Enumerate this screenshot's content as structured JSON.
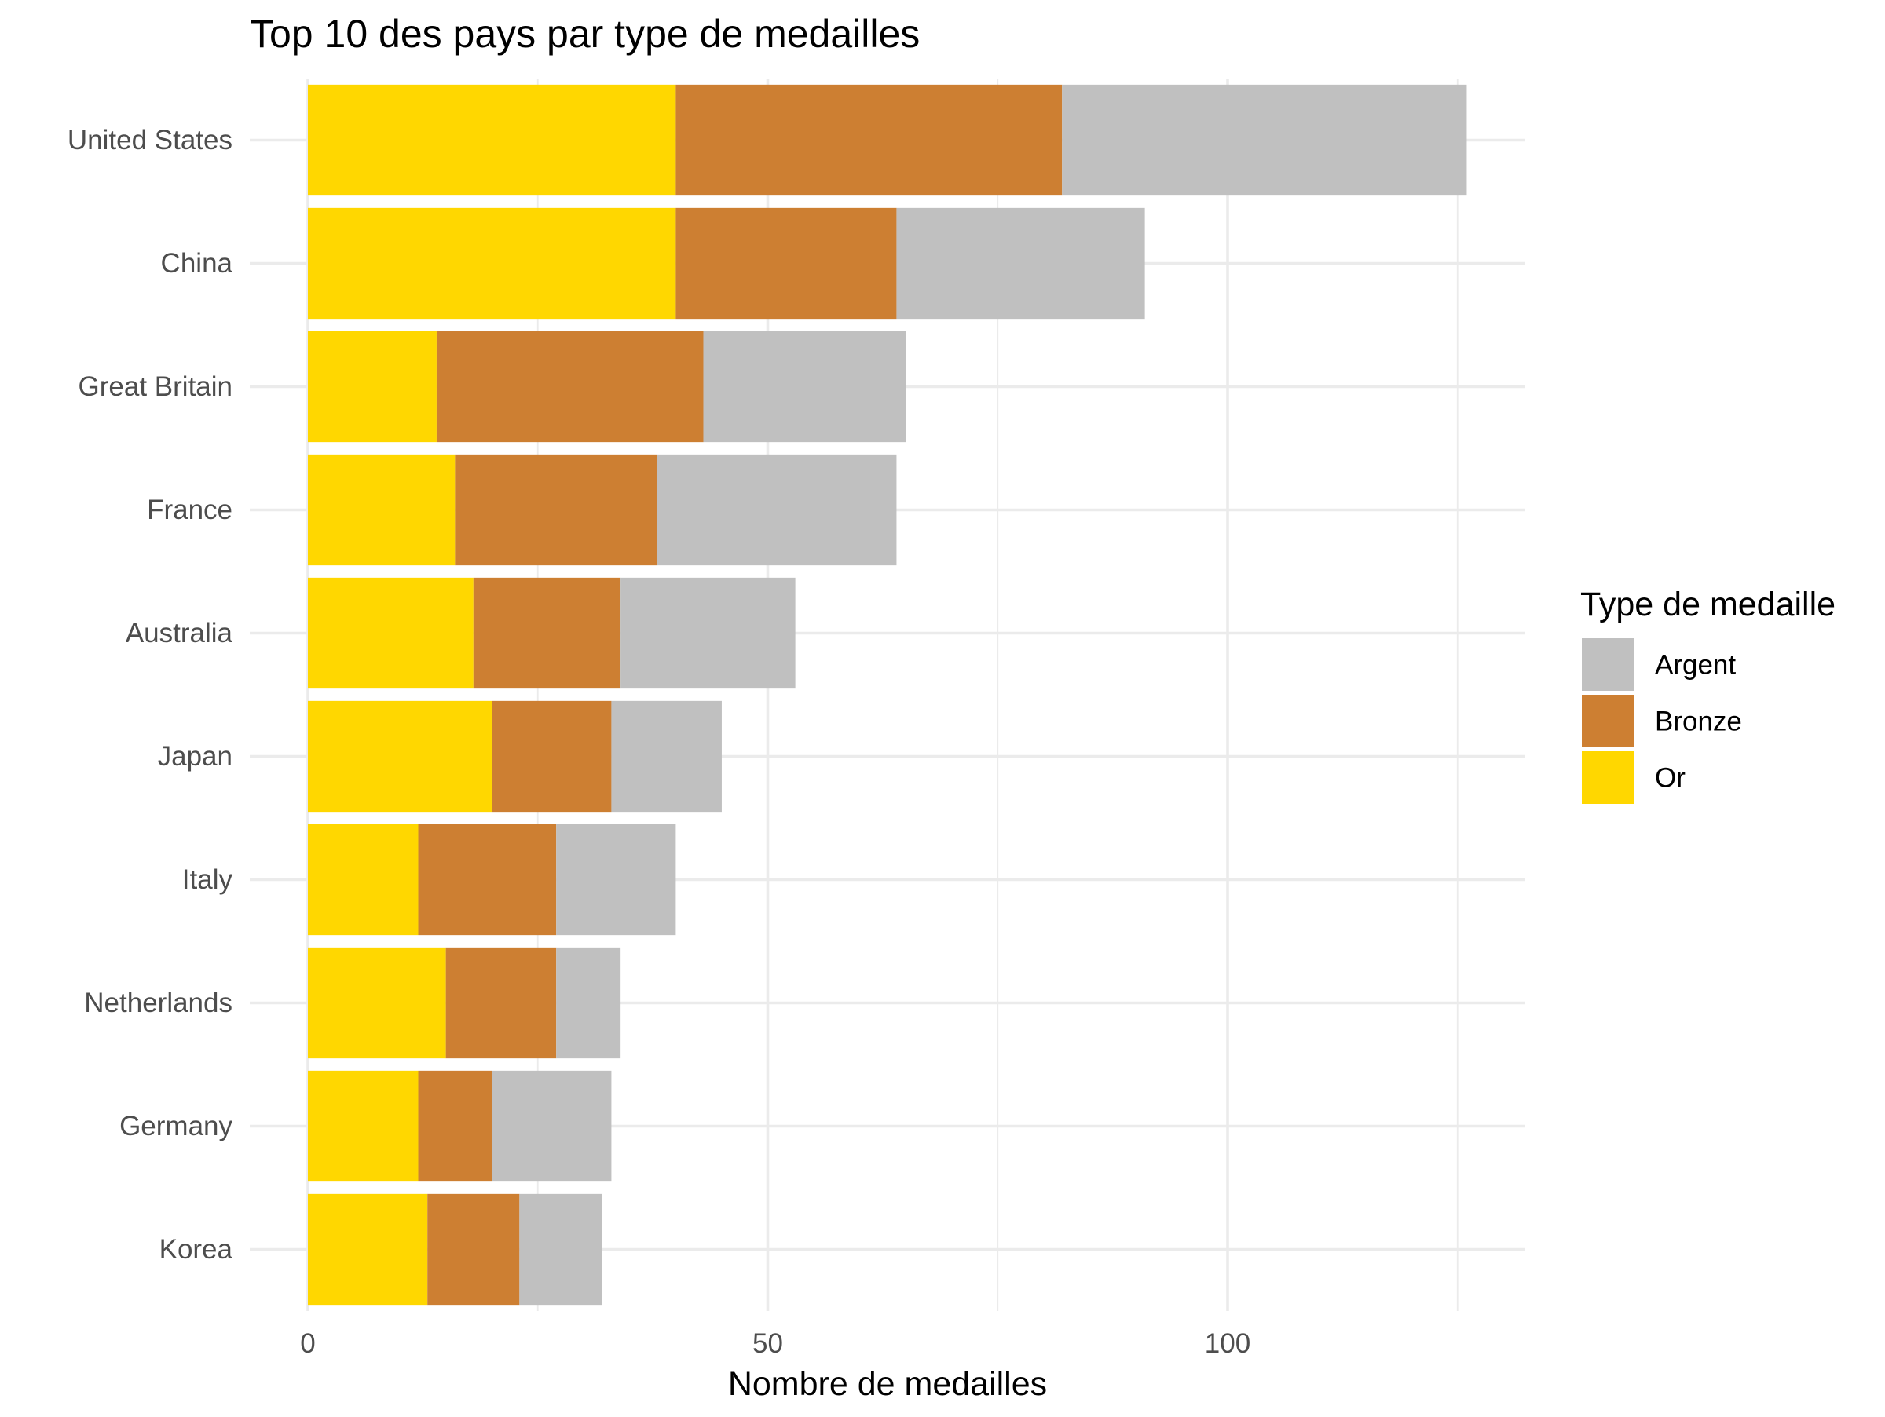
{
  "chart_data": {
    "type": "bar",
    "orientation": "horizontal",
    "stacked": true,
    "title": "Top 10 des pays par type de medailles",
    "xlabel": "Nombre de medailles",
    "ylabel": "",
    "xlim": [
      0,
      132
    ],
    "xticks": [
      0,
      50,
      100
    ],
    "x_tick_labels": [
      "0",
      "50",
      "100"
    ],
    "grid": true,
    "categories": [
      "United States",
      "China",
      "Great Britain",
      "France",
      "Australia",
      "Japan",
      "Italy",
      "Netherlands",
      "Germany",
      "Korea"
    ],
    "series": [
      {
        "name": "Or",
        "color": "#FFD700",
        "values": [
          40,
          40,
          14,
          16,
          18,
          20,
          12,
          15,
          12,
          13
        ]
      },
      {
        "name": "Bronze",
        "color": "#CD7F32",
        "values": [
          42,
          24,
          29,
          22,
          16,
          13,
          15,
          12,
          8,
          10
        ]
      },
      {
        "name": "Argent",
        "color": "#C0C0C0",
        "values": [
          44,
          27,
          22,
          26,
          19,
          12,
          13,
          7,
          13,
          9
        ]
      }
    ],
    "legend": {
      "title": "Type de medaille",
      "position": "right",
      "items": [
        {
          "label": "Argent",
          "color": "#C0C0C0"
        },
        {
          "label": "Bronze",
          "color": "#CD7F32"
        },
        {
          "label": "Or",
          "color": "#FFD700"
        }
      ]
    }
  }
}
